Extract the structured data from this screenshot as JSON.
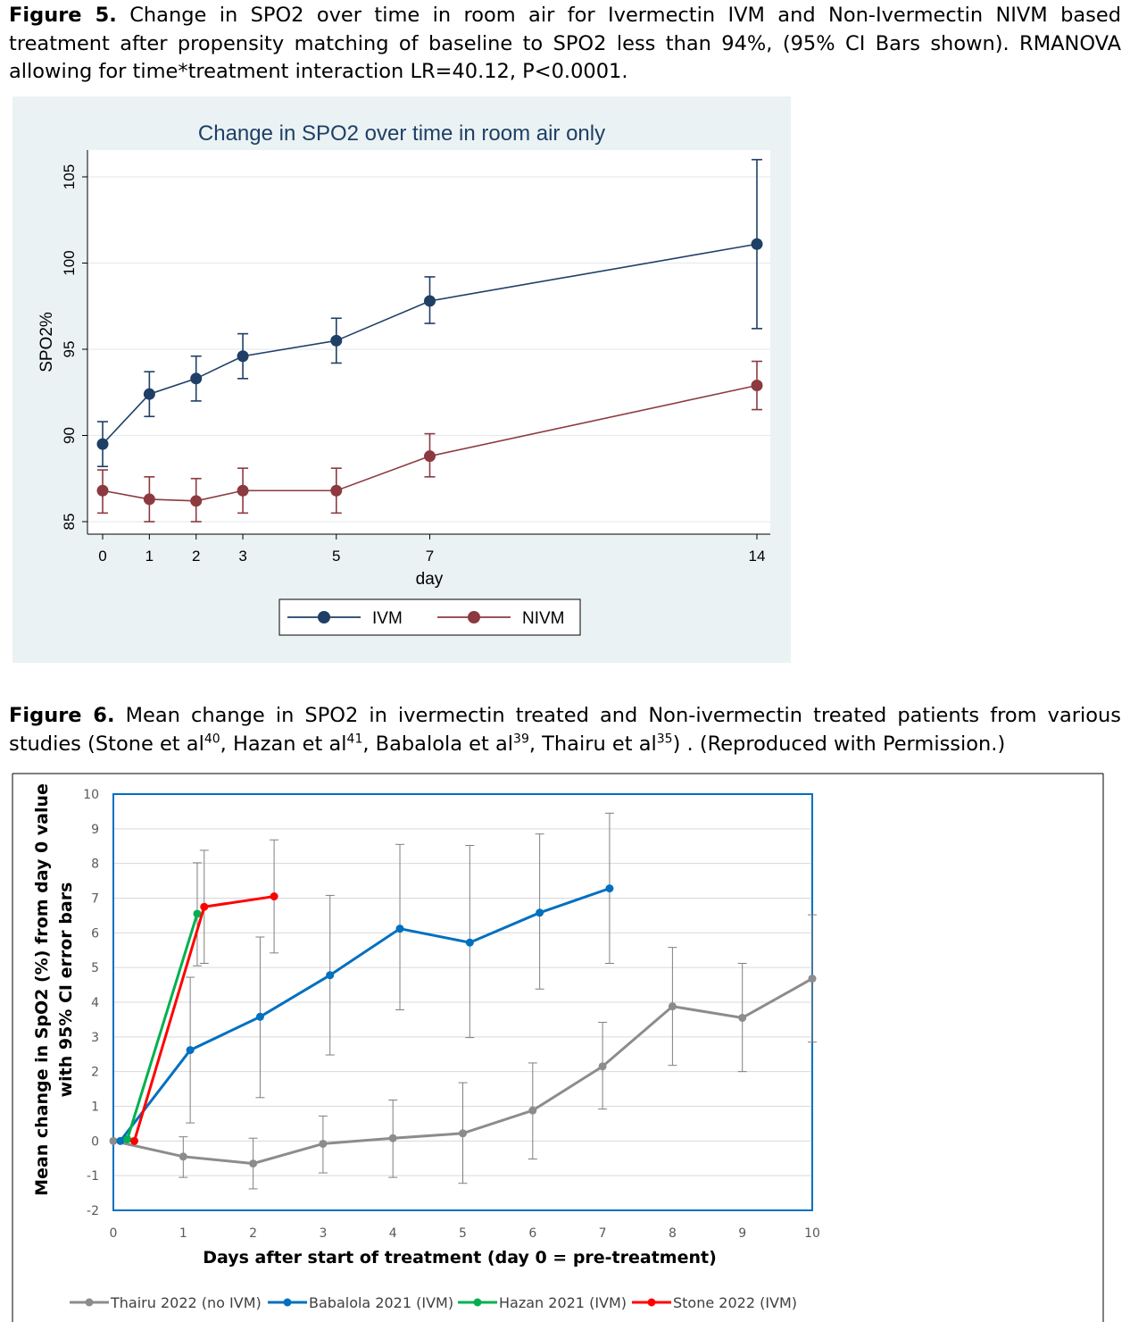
{
  "figure5": {
    "caption_label": "Figure 5.",
    "caption_text": "Change in SPO2 over time in room air for Ivermectin IVM and Non-Ivermectin NIVM based treatment after propensity matching of baseline to SPO2 less than 94%, (95% CI Bars shown). RMANOVA allowing for time*treatment interaction LR=40.12, P<0.0001.",
    "chart_data": {
      "type": "line",
      "title": "Change in SPO2 over time in room air only",
      "xlabel": "day",
      "ylabel": "SPO2%",
      "x": [
        0,
        1,
        2,
        3,
        5,
        7,
        14
      ],
      "x_ticks": [
        "0",
        "1",
        "2",
        "3",
        "5",
        "7",
        "14"
      ],
      "y_ticks": [
        "85",
        "90",
        "95",
        "100",
        "105"
      ],
      "ylim": [
        84.3,
        106.6
      ],
      "grid": true,
      "legend_position": "bottom",
      "series": [
        {
          "name": "IVM",
          "color": "#1f3f66",
          "values": [
            89.5,
            92.4,
            93.3,
            94.6,
            95.5,
            97.8,
            101.1
          ],
          "ci_low": [
            88.2,
            91.1,
            92.0,
            93.3,
            94.2,
            96.5,
            96.2
          ],
          "ci_high": [
            90.8,
            93.7,
            94.6,
            95.9,
            96.8,
            99.2,
            106.0
          ]
        },
        {
          "name": "NIVM",
          "color": "#8c3a3f",
          "values": [
            86.8,
            86.3,
            86.2,
            86.8,
            86.8,
            88.8,
            92.9
          ],
          "ci_low": [
            85.5,
            85.0,
            85.0,
            85.5,
            85.5,
            87.6,
            91.5
          ],
          "ci_high": [
            88.0,
            87.6,
            87.5,
            88.1,
            88.1,
            90.1,
            94.3
          ]
        }
      ]
    }
  },
  "figure6": {
    "caption_label": "Figure 6.",
    "caption_text_1": "Mean change in SPO2 in ivermectin treated and Non-ivermectin treated patients from various studies (Stone et al",
    "ref_stone": "40",
    "caption_text_2": ", Hazan et al",
    "ref_hazan": "41",
    "caption_text_3": ", Babalola et al",
    "ref_babalola": "39",
    "caption_text_4": ", Thairu et al",
    "ref_thairu": "35",
    "caption_text_5": ") . (Reproduced with Permission.)",
    "chart_data": {
      "type": "line",
      "title": "",
      "xlabel": "Days after start of treatment (day 0 = pre-treatment)",
      "ylabel_line1": "Mean change in SpO2 (%) from day 0 value",
      "ylabel_line2": "with 95% CI error bars",
      "xlim": [
        0,
        10
      ],
      "ylim": [
        -2,
        10
      ],
      "x_ticks": [
        "0",
        "1",
        "2",
        "3",
        "4",
        "5",
        "6",
        "7",
        "8",
        "9",
        "10"
      ],
      "y_ticks": [
        "-2",
        "-1",
        "0",
        "1",
        "2",
        "3",
        "4",
        "5",
        "6",
        "7",
        "8",
        "9",
        "10"
      ],
      "grid": true,
      "legend_position": "bottom",
      "series": [
        {
          "name": "Thairu 2022 (no IVM)",
          "color": "#8c8c8c",
          "x": [
            0,
            1,
            2,
            3,
            4,
            5,
            6,
            7,
            8,
            9,
            10
          ],
          "values": [
            0,
            -0.45,
            -0.65,
            -0.08,
            0.08,
            0.22,
            0.88,
            2.15,
            3.88,
            3.55,
            4.68
          ],
          "ci_low": [
            null,
            -1.05,
            -1.38,
            -0.92,
            -1.05,
            -1.22,
            -0.52,
            0.92,
            2.18,
            2.0,
            2.85
          ],
          "ci_high": [
            null,
            0.12,
            0.08,
            0.72,
            1.18,
            1.68,
            2.25,
            3.42,
            5.58,
            5.12,
            6.52
          ]
        },
        {
          "name": "Babalola 2021 (IVM)",
          "color": "#0070c0",
          "x": [
            0.1,
            1.1,
            2.1,
            3.1,
            4.1,
            5.1,
            6.1,
            7.1
          ],
          "values": [
            0,
            2.62,
            3.58,
            4.78,
            6.12,
            5.72,
            6.58,
            7.28
          ],
          "ci_low": [
            null,
            0.52,
            1.25,
            2.48,
            3.78,
            2.98,
            4.38,
            5.12
          ],
          "ci_high": [
            null,
            4.72,
            5.88,
            7.08,
            8.55,
            8.52,
            8.85,
            9.45
          ]
        },
        {
          "name": "Hazan 2021 (IVM)",
          "color": "#00b050",
          "x": [
            0.2,
            1.2
          ],
          "values": [
            0.05,
            6.55
          ],
          "ci_low": [
            null,
            5.05
          ],
          "ci_high": [
            null,
            8.02
          ]
        },
        {
          "name": "Stone 2022 (IVM)",
          "color": "#ff0000",
          "x": [
            0.3,
            1.3,
            2.3
          ],
          "values": [
            0,
            6.75,
            7.05
          ],
          "ci_low": [
            null,
            5.12,
            5.42
          ],
          "ci_high": [
            null,
            8.38,
            8.68
          ]
        }
      ]
    }
  }
}
